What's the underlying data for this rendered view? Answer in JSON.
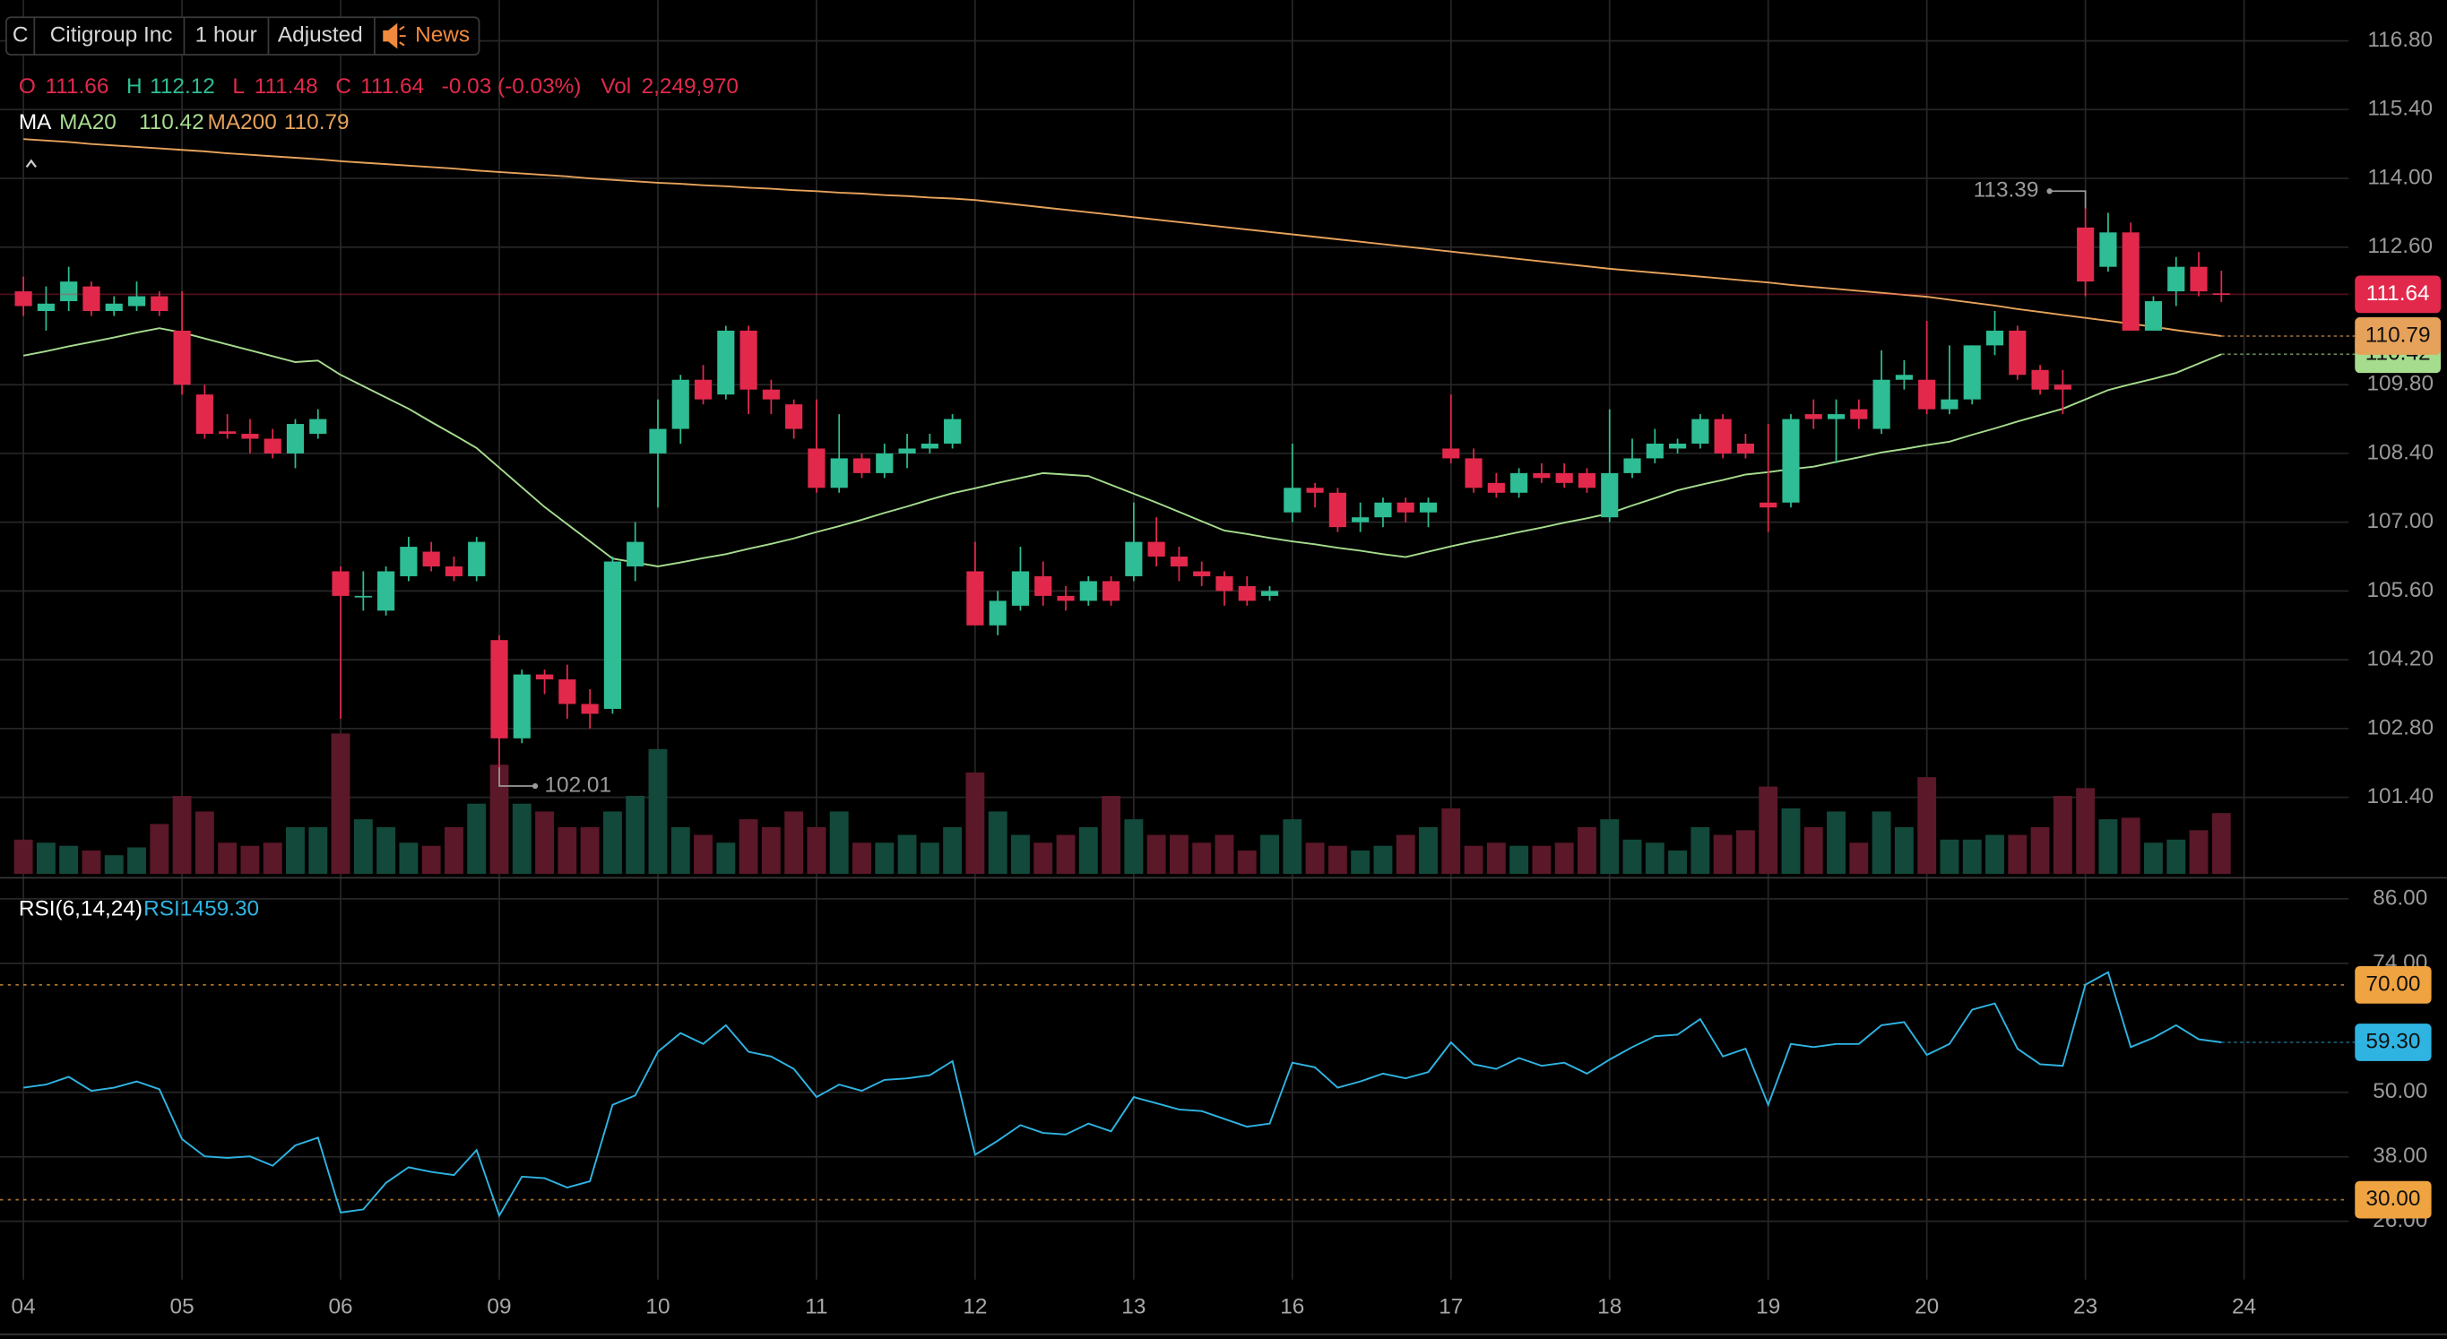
{
  "header": {
    "symbol": "C",
    "name": "Citigroup Inc",
    "interval": "1 hour",
    "adjustment": "Adjusted",
    "news": "News",
    "o_label": "O",
    "h_label": "H",
    "l_label": "L",
    "c_label": "C",
    "change": "-0.03 (-0.03%)",
    "vol_label": "Vol",
    "vol_text": "2,249,970",
    "ma_label": "MA",
    "rsi_label": "RSI(6,14,24)",
    "rsi_legend_name": "RSI14",
    "rsi_legend_value": "59.30"
  },
  "chart_data": [
    {
      "type": "candlestick",
      "categories": [
        "04",
        null,
        null,
        null,
        null,
        null,
        null,
        "05",
        null,
        null,
        null,
        null,
        null,
        null,
        "06",
        null,
        null,
        null,
        null,
        null,
        null,
        "09",
        null,
        null,
        null,
        null,
        null,
        null,
        "10",
        null,
        null,
        null,
        null,
        null,
        null,
        "11",
        null,
        null,
        null,
        null,
        null,
        null,
        "12",
        null,
        null,
        null,
        null,
        null,
        null,
        "13",
        null,
        null,
        null,
        null,
        null,
        null,
        "16",
        null,
        null,
        null,
        null,
        null,
        null,
        "17",
        null,
        null,
        null,
        null,
        null,
        null,
        "18",
        null,
        null,
        null,
        null,
        null,
        null,
        "19",
        null,
        null,
        null,
        null,
        null,
        null,
        "20",
        null,
        null,
        null,
        null,
        null,
        null,
        "23",
        null,
        null,
        null,
        null,
        null,
        null
      ],
      "x_axis_end_label": "24",
      "open": [
        111.7,
        111.3,
        111.5,
        111.8,
        111.3,
        111.4,
        111.6,
        110.9,
        109.6,
        108.85,
        108.8,
        108.7,
        108.4,
        108.8,
        106.0,
        105.5,
        105.2,
        105.9,
        106.4,
        106.1,
        105.9,
        104.6,
        102.6,
        103.9,
        103.8,
        103.3,
        103.2,
        106.1,
        108.4,
        108.9,
        109.9,
        109.6,
        110.9,
        109.7,
        109.4,
        108.5,
        107.7,
        108.3,
        108.0,
        108.4,
        108.5,
        108.6,
        106.0,
        104.9,
        105.3,
        105.9,
        105.5,
        105.4,
        105.8,
        105.9,
        106.6,
        106.3,
        106.0,
        105.9,
        105.7,
        105.5,
        107.2,
        107.7,
        107.6,
        107.0,
        107.1,
        107.4,
        107.2,
        108.5,
        108.3,
        107.8,
        107.6,
        108.0,
        108.0,
        108.0,
        107.1,
        108.0,
        108.3,
        108.5,
        108.6,
        109.1,
        108.6,
        107.4,
        107.4,
        109.2,
        109.1,
        109.3,
        108.9,
        109.9,
        109.9,
        109.3,
        109.5,
        110.6,
        110.9,
        110.1,
        109.8,
        113.0,
        112.2,
        112.9,
        110.9,
        111.7,
        112.2,
        111.66
      ],
      "high": [
        112.0,
        111.8,
        112.2,
        111.9,
        111.6,
        111.9,
        111.7,
        111.7,
        109.8,
        109.2,
        109.1,
        108.9,
        109.1,
        109.3,
        106.1,
        106.0,
        106.1,
        106.7,
        106.6,
        106.3,
        106.7,
        104.7,
        104.0,
        104.0,
        104.1,
        103.6,
        106.3,
        107.0,
        109.5,
        110.0,
        110.2,
        111.0,
        111.0,
        109.9,
        109.5,
        109.5,
        109.2,
        108.4,
        108.6,
        108.8,
        108.8,
        109.2,
        106.6,
        105.6,
        106.5,
        106.2,
        105.7,
        105.9,
        105.9,
        107.4,
        107.1,
        106.5,
        106.2,
        106.0,
        105.9,
        105.7,
        108.6,
        107.8,
        107.7,
        107.4,
        107.5,
        107.5,
        107.5,
        109.6,
        108.5,
        108.0,
        108.1,
        108.2,
        108.2,
        108.1,
        109.3,
        108.7,
        108.9,
        108.7,
        109.2,
        109.2,
        108.8,
        109.0,
        109.2,
        109.5,
        109.5,
        109.5,
        110.5,
        110.3,
        111.1,
        110.6,
        110.6,
        111.3,
        111.0,
        110.2,
        110.1,
        113.39,
        113.3,
        113.1,
        111.6,
        112.4,
        112.5,
        112.12
      ],
      "low": [
        111.2,
        110.9,
        111.3,
        111.2,
        111.2,
        111.3,
        111.2,
        109.6,
        108.7,
        108.7,
        108.4,
        108.3,
        108.1,
        108.7,
        103.0,
        105.2,
        105.1,
        105.8,
        106.0,
        105.8,
        105.8,
        102.01,
        102.5,
        103.5,
        103.0,
        102.8,
        103.1,
        105.8,
        107.3,
        108.6,
        109.4,
        109.5,
        109.2,
        109.2,
        108.7,
        107.6,
        107.6,
        107.9,
        107.9,
        108.1,
        108.4,
        108.5,
        104.9,
        104.7,
        105.2,
        105.3,
        105.2,
        105.3,
        105.3,
        105.8,
        106.1,
        105.8,
        105.7,
        105.3,
        105.3,
        105.4,
        107.0,
        107.3,
        106.8,
        106.8,
        106.9,
        107.0,
        106.9,
        108.2,
        107.6,
        107.5,
        107.5,
        107.8,
        107.7,
        107.6,
        107.0,
        107.9,
        108.2,
        108.4,
        108.5,
        108.3,
        108.3,
        106.8,
        107.3,
        108.9,
        108.2,
        108.9,
        108.8,
        109.7,
        109.2,
        109.2,
        109.4,
        110.4,
        109.9,
        109.6,
        109.2,
        111.6,
        112.1,
        110.9,
        110.9,
        111.4,
        111.6,
        111.48
      ],
      "close": [
        111.4,
        111.45,
        111.9,
        111.3,
        111.45,
        111.6,
        111.3,
        109.8,
        108.8,
        108.8,
        108.7,
        108.4,
        109.0,
        109.1,
        105.5,
        105.5,
        106.0,
        106.5,
        106.1,
        105.9,
        106.6,
        102.6,
        103.9,
        103.8,
        103.3,
        103.1,
        106.2,
        106.6,
        108.9,
        109.9,
        109.5,
        110.9,
        109.7,
        109.5,
        108.9,
        107.7,
        108.3,
        108.0,
        108.4,
        108.5,
        108.6,
        109.1,
        104.9,
        105.4,
        106.0,
        105.5,
        105.4,
        105.8,
        105.4,
        106.6,
        106.3,
        106.1,
        105.9,
        105.6,
        105.4,
        105.6,
        107.7,
        107.6,
        106.9,
        107.1,
        107.4,
        107.2,
        107.4,
        108.3,
        107.7,
        107.6,
        108.0,
        107.9,
        107.8,
        107.7,
        108.0,
        108.3,
        108.6,
        108.6,
        109.1,
        108.4,
        108.4,
        107.3,
        109.1,
        109.1,
        109.2,
        109.1,
        109.9,
        110.0,
        109.3,
        109.5,
        110.6,
        110.9,
        110.0,
        109.7,
        109.7,
        111.9,
        112.9,
        110.9,
        111.5,
        112.2,
        111.7,
        111.64
      ],
      "volume": [
        1269000,
        1154000,
        1039000,
        866000,
        692000,
        981000,
        1846000,
        2885000,
        2308000,
        1154000,
        1039000,
        1154000,
        1731000,
        1731000,
        5193000,
        2020000,
        1731000,
        1154000,
        1039000,
        1731000,
        2597000,
        4039000,
        2597000,
        2308000,
        1731000,
        1731000,
        2308000,
        2885000,
        4616000,
        1731000,
        1443000,
        1154000,
        2020000,
        1731000,
        2308000,
        1731000,
        2308000,
        1154000,
        1154000,
        1443000,
        1154000,
        1731000,
        3751000,
        2308000,
        1443000,
        1154000,
        1443000,
        1731000,
        2885000,
        2020000,
        1443000,
        1443000,
        1154000,
        1443000,
        866000,
        1443000,
        2020000,
        1154000,
        1039000,
        866000,
        1039000,
        1443000,
        1731000,
        2423000,
        1039000,
        1154000,
        1039000,
        1039000,
        1154000,
        1731000,
        2020000,
        1269000,
        1154000,
        866000,
        1731000,
        1443000,
        1616000,
        3231000,
        2423000,
        1731000,
        2308000,
        1154000,
        2308000,
        1731000,
        3577000,
        1269000,
        1269000,
        1443000,
        1443000,
        1731000,
        2885000,
        3174000,
        2020000,
        2077000,
        1154000,
        1269000,
        1616000,
        2249970
      ],
      "up_color": "#2ebd94",
      "down_color": "#e2294c",
      "volume_up_color": "#12493b",
      "volume_down_color": "#5a1828",
      "series": [
        {
          "name": "MA20",
          "color": "#a6dc8e",
          "values": [
            110.39,
            110.48,
            110.58,
            110.67,
            110.76,
            110.86,
            110.95,
            110.86,
            110.74,
            110.62,
            110.5,
            110.38,
            110.26,
            110.29,
            110.0,
            109.77,
            109.54,
            109.31,
            109.04,
            108.78,
            108.51,
            108.11,
            107.71,
            107.31,
            106.96,
            106.61,
            106.26,
            106.18,
            106.1,
            106.18,
            106.27,
            106.35,
            106.46,
            106.56,
            106.67,
            106.8,
            106.92,
            107.05,
            107.19,
            107.32,
            107.46,
            107.59,
            107.69,
            107.8,
            107.9,
            108.0,
            107.97,
            107.94,
            107.76,
            107.58,
            107.4,
            107.21,
            107.02,
            106.83,
            106.76,
            106.68,
            106.61,
            106.55,
            106.48,
            106.42,
            106.35,
            106.29,
            106.4,
            106.51,
            106.61,
            106.7,
            106.8,
            106.89,
            106.99,
            107.08,
            107.18,
            107.34,
            107.49,
            107.65,
            107.76,
            107.86,
            107.97,
            108.02,
            108.08,
            108.13,
            108.23,
            108.32,
            108.42,
            108.49,
            108.57,
            108.64,
            108.78,
            108.91,
            109.05,
            109.18,
            109.31,
            109.5,
            109.69,
            109.81,
            109.92,
            110.04,
            110.23,
            110.42
          ]
        },
        {
          "name": "MA200",
          "color": "#e6a25a",
          "values": [
            114.8,
            114.77,
            114.74,
            114.7,
            114.67,
            114.64,
            114.61,
            114.58,
            114.55,
            114.51,
            114.48,
            114.45,
            114.42,
            114.39,
            114.35,
            114.32,
            114.29,
            114.26,
            114.23,
            114.2,
            114.16,
            114.13,
            114.1,
            114.07,
            114.04,
            114.0,
            113.97,
            113.94,
            113.91,
            113.89,
            113.86,
            113.84,
            113.81,
            113.79,
            113.76,
            113.74,
            113.71,
            113.69,
            113.66,
            113.64,
            113.61,
            113.59,
            113.56,
            113.51,
            113.46,
            113.41,
            113.36,
            113.31,
            113.26,
            113.21,
            113.16,
            113.11,
            113.06,
            113.01,
            112.96,
            112.91,
            112.86,
            112.81,
            112.76,
            112.71,
            112.66,
            112.61,
            112.56,
            112.51,
            112.46,
            112.41,
            112.36,
            112.31,
            112.26,
            112.21,
            112.16,
            112.12,
            112.08,
            112.04,
            112.0,
            111.96,
            111.92,
            111.88,
            111.83,
            111.79,
            111.75,
            111.71,
            111.67,
            111.63,
            111.59,
            111.53,
            111.47,
            111.41,
            111.34,
            111.28,
            111.22,
            111.16,
            111.1,
            111.04,
            110.98,
            110.91,
            110.85,
            110.79
          ]
        }
      ],
      "ylim": [
        99.84,
        117.63
      ],
      "yticks": [
        {
          "value": 116.8,
          "label": "116.80"
        },
        {
          "value": 115.4,
          "label": "115.40"
        },
        {
          "value": 114,
          "label": "114.00"
        },
        {
          "value": 112.6,
          "label": "112.60"
        },
        {
          "value": 109.8,
          "label": "109.80"
        },
        {
          "value": 108.4,
          "label": "108.40"
        },
        {
          "value": 107,
          "label": "107.00"
        },
        {
          "value": 105.6,
          "label": "105.60"
        },
        {
          "value": 104.2,
          "label": "104.20"
        },
        {
          "value": 102.8,
          "label": "102.80"
        },
        {
          "value": 101.4,
          "label": "101.40"
        }
      ],
      "grid": true
    },
    {
      "type": "line",
      "series": [
        {
          "name": "RSI14",
          "color": "#2fb4e2",
          "values": [
            50.86,
            51.44,
            52.89,
            50.28,
            50.86,
            52.02,
            50.57,
            41.28,
            38.08,
            37.79,
            38.08,
            36.34,
            40.12,
            41.57,
            27.63,
            28.21,
            33.15,
            36.05,
            35.18,
            34.6,
            39.25,
            27.05,
            34.31,
            34.02,
            32.28,
            33.44,
            47.67,
            49.41,
            57.54,
            61.03,
            59.0,
            62.48,
            57.54,
            56.67,
            54.35,
            49.12,
            51.44,
            50.28,
            52.31,
            52.6,
            53.18,
            55.8,
            38.37,
            40.99,
            43.89,
            42.44,
            42.15,
            44.18,
            42.73,
            49.12,
            47.96,
            46.8,
            46.51,
            45.05,
            43.6,
            44.18,
            55.51,
            54.64,
            50.86,
            52.02,
            53.48,
            52.6,
            53.77,
            59.28,
            55.22,
            54.35,
            56.38,
            54.93,
            55.51,
            53.48,
            56.09,
            58.41,
            60.44,
            60.73,
            63.64,
            56.67,
            58.12,
            47.67,
            59.0,
            58.41,
            59.0,
            59.0,
            62.48,
            63.06,
            56.96,
            59.0,
            65.38,
            66.54,
            58.12,
            55.22,
            54.93,
            70.03,
            72.35,
            58.41,
            60.15,
            62.48,
            59.87,
            59.3
          ]
        }
      ],
      "levels": [
        {
          "value": 70,
          "label": "70.00"
        },
        {
          "value": 30,
          "label": "30.00"
        }
      ],
      "level_color": "#f0a441",
      "ylim": [
        15.14,
        89.19
      ],
      "yticks": [
        {
          "value": 86,
          "label": "86.00"
        },
        {
          "value": 74,
          "label": "74.00"
        },
        {
          "value": 50,
          "label": "50.00"
        },
        {
          "value": 38,
          "label": "38.00"
        },
        {
          "value": 26,
          "label": "26.00"
        }
      ],
      "grid": true
    }
  ]
}
